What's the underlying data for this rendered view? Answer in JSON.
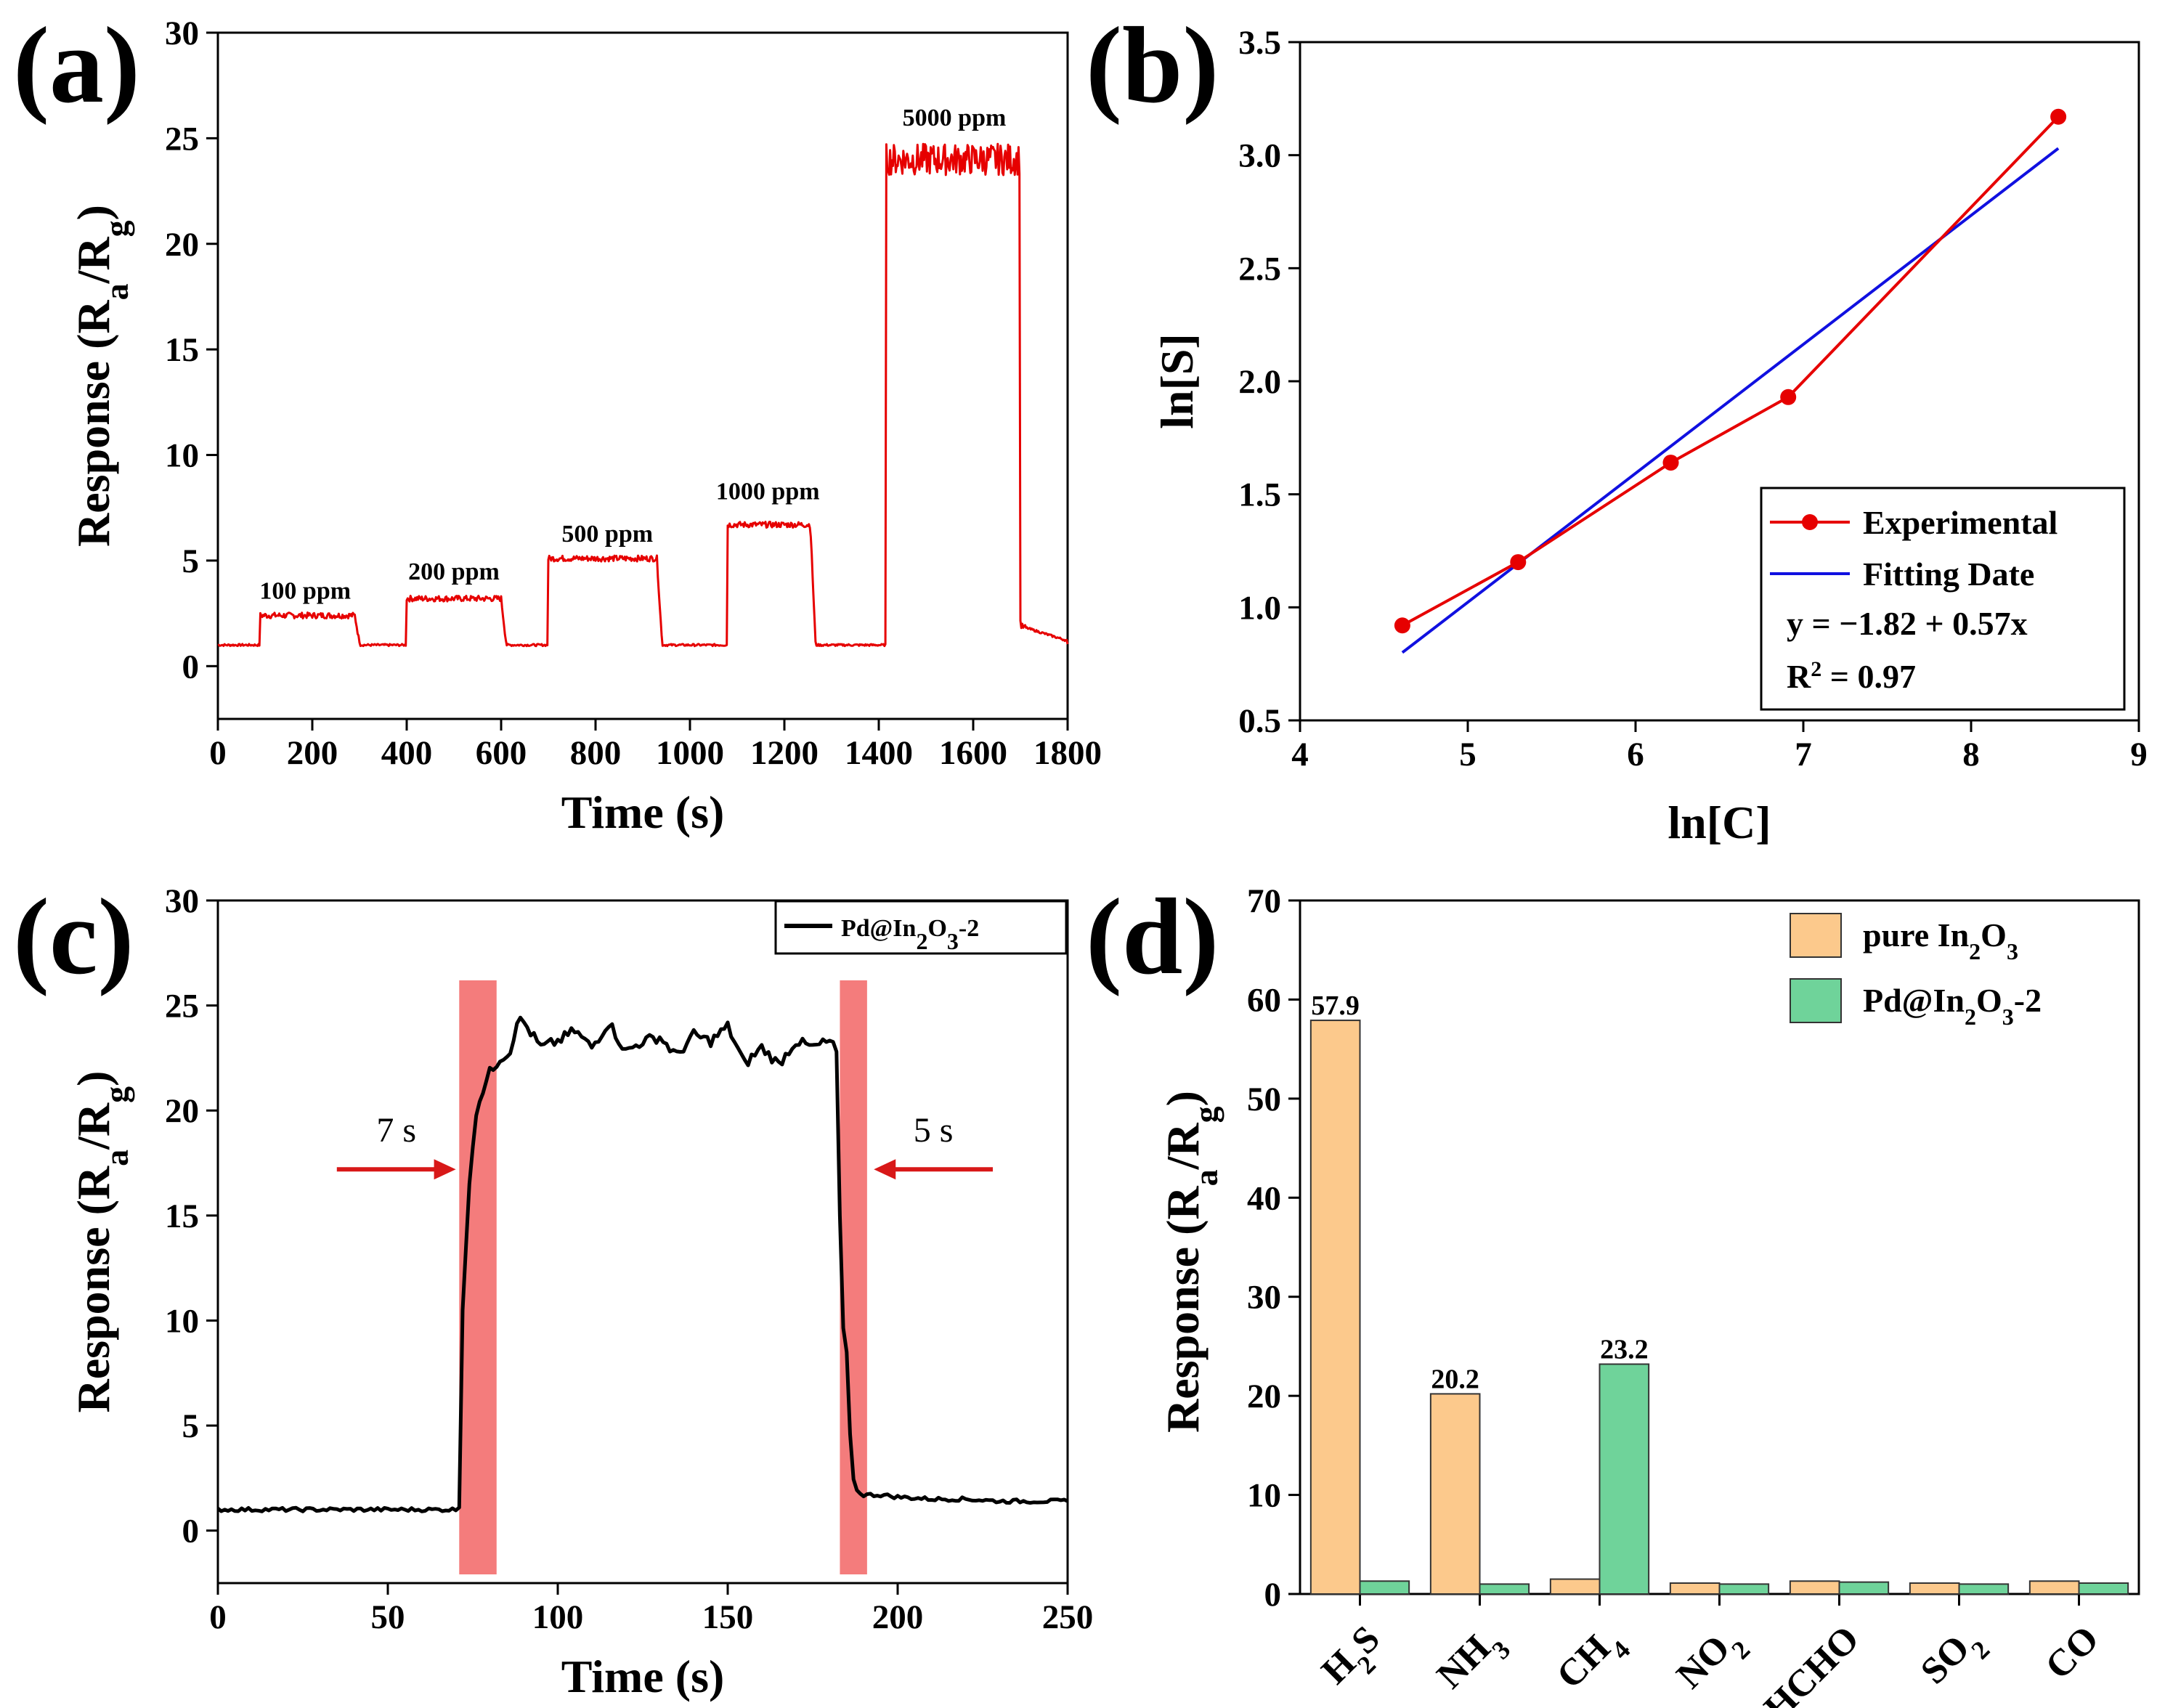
{
  "colors": {
    "red": "#e60000",
    "blue": "#1010e0",
    "black": "#000000",
    "orange": "#fcc98c",
    "green": "#6fd39a",
    "band": "#f47c7c",
    "arrow": "#d81818"
  },
  "chart_data": [
    {
      "id": "a",
      "type": "line",
      "panel_label": "(a)",
      "xlabel": "Time (s)",
      "ylabel": "Response (Ra/Rg)",
      "ylabel_parts": {
        "main": "Response (R",
        "sub1": "a",
        "mid": "/R",
        "sub2": "g",
        "end": ")"
      },
      "xlim": [
        0,
        1800
      ],
      "ylim": [
        -2.5,
        30
      ],
      "xticks": [
        0,
        200,
        400,
        600,
        800,
        1000,
        1200,
        1400,
        1600,
        1800
      ],
      "yticks": [
        0,
        5,
        10,
        15,
        20,
        25,
        30
      ],
      "series": [
        {
          "name": "response",
          "color": "red",
          "baseline": 1.0,
          "steps": [
            {
              "on": 90,
              "off": 290,
              "level": 2.4
            },
            {
              "on": 400,
              "off": 600,
              "level": 3.2
            },
            {
              "on": 700,
              "off": 930,
              "level": 5.1
            },
            {
              "on": 1080,
              "off": 1255,
              "level": 6.7
            },
            {
              "on": 1415,
              "off": 1700,
              "level": 24.0
            }
          ]
        }
      ],
      "annotations": [
        {
          "text": "100 ppm",
          "x": 185,
          "y": 3.2
        },
        {
          "text": "200 ppm",
          "x": 500,
          "y": 4.1
        },
        {
          "text": "500 ppm",
          "x": 825,
          "y": 5.9
        },
        {
          "text": "1000 ppm",
          "x": 1165,
          "y": 7.9
        },
        {
          "text": "5000 ppm",
          "x": 1560,
          "y": 25.6
        }
      ]
    },
    {
      "id": "b",
      "type": "scatter",
      "panel_label": "(b)",
      "xlabel": "ln[C]",
      "ylabel": "ln[S]",
      "xlim": [
        4,
        9
      ],
      "ylim": [
        0.5,
        3.5
      ],
      "xticks": [
        4,
        5,
        6,
        7,
        8,
        9
      ],
      "yticks": [
        0.5,
        1.0,
        1.5,
        2.0,
        2.5,
        3.0,
        3.5
      ],
      "series": [
        {
          "name": "Experimental",
          "color": "red",
          "x": [
            4.61,
            5.3,
            6.21,
            6.91,
            8.52
          ],
          "y": [
            0.92,
            1.2,
            1.64,
            1.93,
            3.17
          ]
        },
        {
          "name": "Fitting Date",
          "color": "blue",
          "x": [
            4.61,
            8.52
          ],
          "y": [
            0.8,
            3.03
          ]
        }
      ],
      "legend": {
        "entries": [
          "Experimental",
          "Fitting Date"
        ],
        "equation": "y = −1.82 + 0.57x",
        "r2_prefix": "R",
        "r2_sup": "2",
        "r2_value": " = 0.97",
        "placement": "bottom-right"
      }
    },
    {
      "id": "c",
      "type": "line",
      "panel_label": "(c)",
      "xlabel": "Time (s)",
      "ylabel": "Response (Ra/Rg)",
      "ylabel_parts": {
        "main": "Response (R",
        "sub1": "a",
        "mid": "/R",
        "sub2": "g",
        "end": ")"
      },
      "xlim": [
        0,
        250
      ],
      "ylim": [
        -2.5,
        30
      ],
      "xticks": [
        0,
        50,
        100,
        150,
        200,
        250
      ],
      "yticks": [
        0,
        5,
        10,
        15,
        20,
        25,
        30
      ],
      "series": [
        {
          "name": "Pd@In2O3-2",
          "color": "black",
          "x": [
            0,
            20,
            40,
            60,
            70,
            71,
            72,
            74,
            76,
            78,
            80,
            83,
            86,
            88,
            90,
            95,
            100,
            105,
            110,
            115,
            120,
            125,
            130,
            135,
            140,
            145,
            150,
            155,
            160,
            165,
            170,
            175,
            180,
            182,
            183,
            184,
            185,
            186,
            187,
            188,
            190,
            195,
            200,
            210,
            220,
            230,
            240,
            250
          ],
          "y": [
            1.0,
            1.0,
            1.0,
            1.0,
            1.0,
            1.1,
            10.5,
            16.5,
            20.0,
            21.0,
            21.8,
            22.5,
            22.8,
            24.3,
            24.2,
            23.0,
            23.3,
            23.8,
            23.0,
            24.2,
            22.8,
            23.3,
            23.5,
            22.6,
            23.6,
            23.3,
            24.0,
            22.2,
            23.0,
            22.2,
            23.3,
            23.0,
            23.3,
            22.8,
            15.0,
            9.6,
            8.5,
            4.5,
            2.5,
            1.9,
            1.7,
            1.7,
            1.6,
            1.5,
            1.5,
            1.4,
            1.4,
            1.4
          ]
        }
      ],
      "bands": [
        {
          "from": 71,
          "to": 82
        },
        {
          "from": 183,
          "to": 191
        }
      ],
      "arrows": [
        {
          "text": "7 s",
          "from": 35,
          "to": 70,
          "y": 17.2,
          "dir": "right"
        },
        {
          "text": "5 s",
          "from": 228,
          "to": 193,
          "y": 17.2,
          "dir": "left"
        }
      ],
      "legend": {
        "prefix": "Pd@In",
        "sub1": "2",
        "mid": "O",
        "sub2": "3",
        "suffix": "-2",
        "placement": "top-right"
      }
    },
    {
      "id": "d",
      "type": "bar",
      "panel_label": "(d)",
      "ylabel": "Response (Ra/Rg)",
      "ylabel_parts": {
        "main": "Response (R",
        "sub1": "a",
        "mid": "/R",
        "sub2": "g",
        "end": ")"
      },
      "ylim": [
        0,
        70
      ],
      "yticks": [
        0,
        10,
        20,
        30,
        40,
        50,
        60,
        70
      ],
      "categories": [
        "H2S",
        "NH3",
        "CH4",
        "NO2",
        "HCHO",
        "SO2",
        "CO"
      ],
      "category_parts": [
        {
          "base": "H",
          "sub": "2",
          "tail": "S"
        },
        {
          "base": "NH",
          "sub": "3",
          "tail": ""
        },
        {
          "base": "CH",
          "sub": "4",
          "tail": ""
        },
        {
          "base": "NO",
          "sub": "2",
          "tail": ""
        },
        {
          "base": "HCHO",
          "sub": "",
          "tail": ""
        },
        {
          "base": "SO",
          "sub": "2",
          "tail": ""
        },
        {
          "base": "CO",
          "sub": "",
          "tail": ""
        }
      ],
      "series": [
        {
          "name": "pure In2O3",
          "color": "orange",
          "values": [
            57.9,
            20.2,
            1.5,
            1.1,
            1.3,
            1.1,
            1.3
          ]
        },
        {
          "name": "Pd@In2O3-2",
          "color": "green",
          "values": [
            1.3,
            1.0,
            23.2,
            1.0,
            1.2,
            1.0,
            1.1
          ]
        }
      ],
      "data_labels": [
        {
          "text": "57.9",
          "series": 0,
          "index": 0
        },
        {
          "text": "20.2",
          "series": 0,
          "index": 1
        },
        {
          "text": "23.2",
          "series": 1,
          "index": 2
        }
      ],
      "legend": {
        "entries": [
          {
            "prefix": "pure In",
            "sub1": "2",
            "mid": "O",
            "sub2": "3",
            "suffix": ""
          },
          {
            "prefix": "Pd@In",
            "sub1": "2",
            "mid": "O",
            "sub2": "3",
            "suffix": "-2"
          }
        ],
        "placement": "top-right"
      }
    }
  ]
}
